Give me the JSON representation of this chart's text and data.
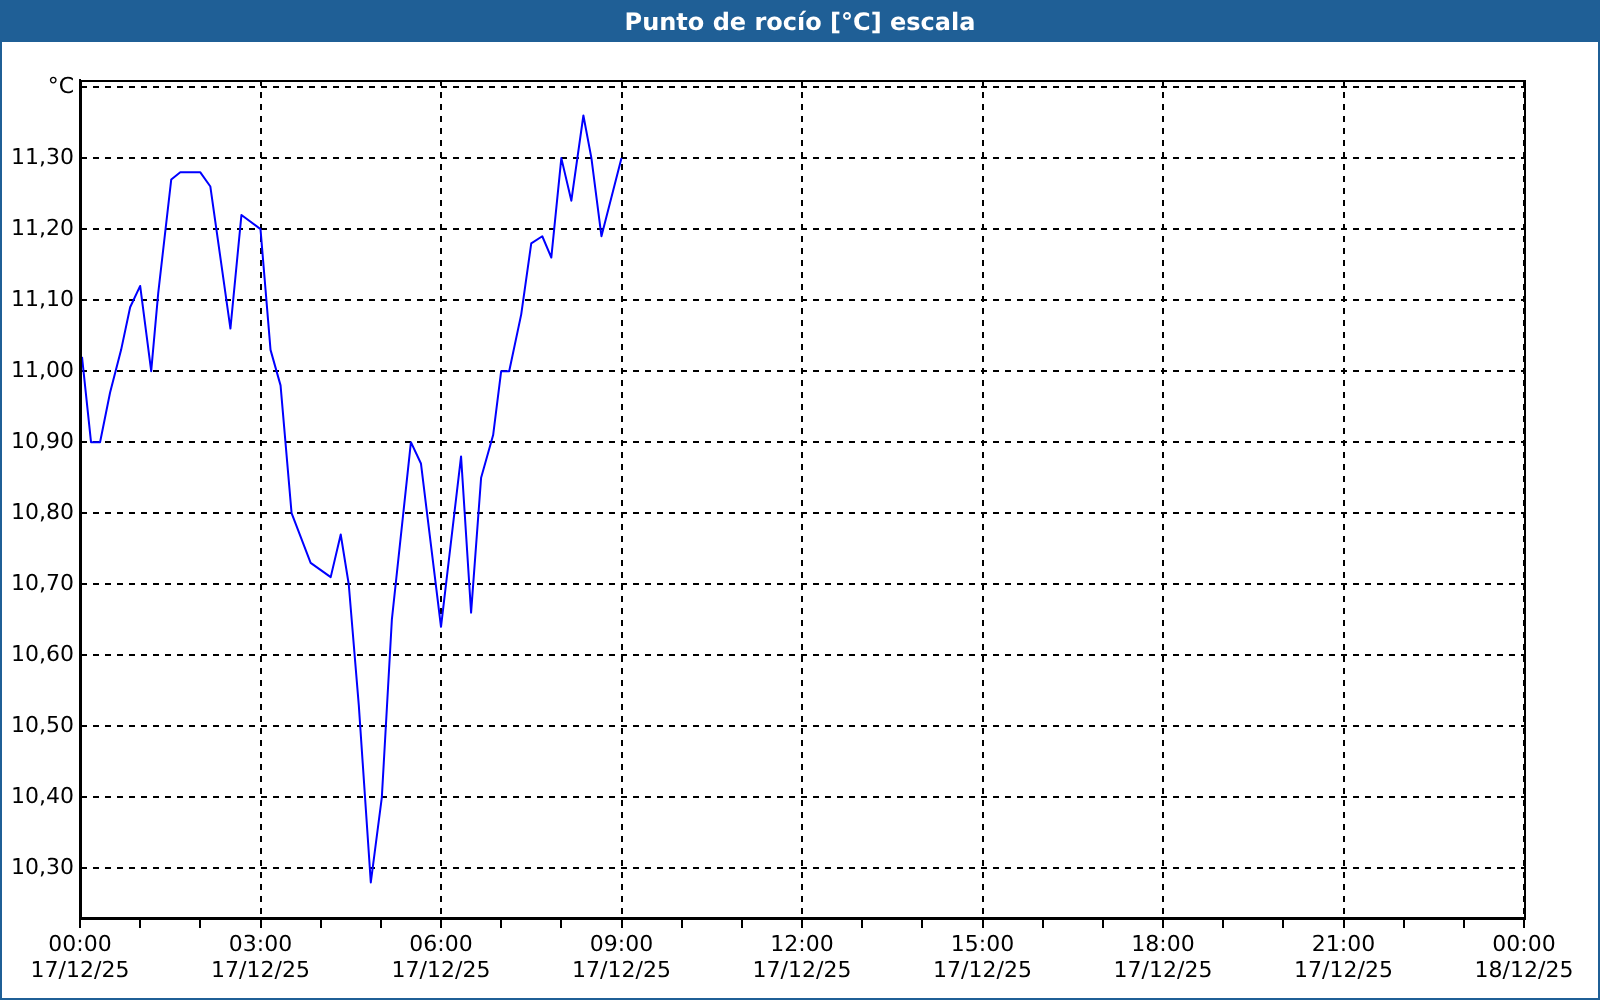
{
  "chart_data": {
    "type": "line",
    "title": "Punto de rocío [°C] escala",
    "x": [
      "--12-17T00:02",
      "--12-17T00:11",
      "--12-17T00:20",
      "--12-17T00:30",
      "--12-17T00:41",
      "--12-17T00:50",
      "--12-17T01:00",
      "--12-17T01:11",
      "--12-17T01:18",
      "--12-17T01:31",
      "--12-17T01:40",
      "--12-17T02:00",
      "--12-17T02:10",
      "--12-17T02:30",
      "--12-17T02:41",
      "--12-17T03:00",
      "--12-17T03:10",
      "--12-17T03:20",
      "--12-17T03:31",
      "--12-17T03:50",
      "--12-17T04:10",
      "--12-17T04:20",
      "--12-17T04:28",
      "--12-17T04:38",
      "--12-17T04:50",
      "--12-17T05:01",
      "--12-17T05:11",
      "--12-17T05:30",
      "--12-17T05:40",
      "--12-17T06:00",
      "--12-17T06:20",
      "--12-17T06:30",
      "--12-17T06:40",
      "--12-17T06:52",
      "--12-17T07:00",
      "--12-17T07:08",
      "--12-17T07:20",
      "--12-17T07:30",
      "--12-17T07:41",
      "--12-17T07:50",
      "--12-17T08:00",
      "--12-17T08:10",
      "--12-17T08:22",
      "--12-17T08:30",
      "--12-17T08:40",
      "--12-17T09:00"
    ],
    "series": [
      {
        "color": "#0000ff",
        "values": [
          11.02,
          10.9,
          10.9,
          10.97,
          11.03,
          11.09,
          11.12,
          11.0,
          11.11,
          11.27,
          11.28,
          11.28,
          11.26,
          11.06,
          11.22,
          11.2,
          11.03,
          10.98,
          10.8,
          10.73,
          10.71,
          10.77,
          10.7,
          10.53,
          10.28,
          10.4,
          10.65,
          10.9,
          10.87,
          10.64,
          10.88,
          10.66,
          10.85,
          10.91,
          11.0,
          11.0,
          11.08,
          11.18,
          11.19,
          11.16,
          11.3,
          11.24,
          11.36,
          11.3,
          11.19,
          11.3
        ]
      }
    ],
    "xlim": [
      "--12-17T00:00",
      "--12-18T00:00"
    ],
    "xticks": [
      {
        "value": "--12-17T00:00",
        "label": "00:00\n17/12/25"
      },
      {
        "value": "--12-17T01:00",
        "label": null
      },
      {
        "value": "--12-17T02:00",
        "label": null
      },
      {
        "value": "--12-17T03:00",
        "label": "03:00\n17/12/25"
      },
      {
        "value": "--12-17T04:00",
        "label": null
      },
      {
        "value": "--12-17T05:00",
        "label": null
      },
      {
        "value": "--12-17T06:00",
        "label": "06:00\n17/12/25"
      },
      {
        "value": "--12-17T07:00",
        "label": null
      },
      {
        "value": "--12-17T08:00",
        "label": null
      },
      {
        "value": "--12-17T09:00",
        "label": "09:00\n17/12/25"
      },
      {
        "value": "--12-17T10:00",
        "label": null
      },
      {
        "value": "--12-17T11:00",
        "label": null
      },
      {
        "value": "--12-17T12:00",
        "label": "12:00\n17/12/25"
      },
      {
        "value": "--12-17T13:00",
        "label": null
      },
      {
        "value": "--12-17T14:00",
        "label": null
      },
      {
        "value": "--12-17T15:00",
        "label": "15:00\n17/12/25"
      },
      {
        "value": "--12-17T16:00",
        "label": null
      },
      {
        "value": "--12-17T17:00",
        "label": null
      },
      {
        "value": "--12-17T18:00",
        "label": "18:00\n17/12/25"
      },
      {
        "value": "--12-17T19:00",
        "label": null
      },
      {
        "value": "--12-17T20:00",
        "label": null
      },
      {
        "value": "--12-17T21:00",
        "label": "21:00\n17/12/25"
      },
      {
        "value": "--12-17T22:00",
        "label": null
      },
      {
        "value": "--12-17T23:00",
        "label": null
      },
      {
        "value": "--12-18T00:00",
        "label": "00:00\n18/12/25"
      }
    ],
    "ylim": [
      10.23,
      11.41
    ],
    "yticks": [
      {
        "value": 10.3,
        "label": "10,30"
      },
      {
        "value": 10.4,
        "label": "10,40"
      },
      {
        "value": 10.5,
        "label": "10,50"
      },
      {
        "value": 10.6,
        "label": "10,60"
      },
      {
        "value": 10.7,
        "label": "10,70"
      },
      {
        "value": 10.8,
        "label": "10,80"
      },
      {
        "value": 10.9,
        "label": "10,90"
      },
      {
        "value": 11.0,
        "label": "11,00"
      },
      {
        "value": 11.1,
        "label": "11,10"
      },
      {
        "value": 11.2,
        "label": "11,20"
      },
      {
        "value": 11.3,
        "label": "11,30"
      },
      {
        "value": 11.4,
        "label": "°C"
      }
    ],
    "grid": true,
    "legend": false,
    "marker": "none",
    "line_style": "solid"
  }
}
